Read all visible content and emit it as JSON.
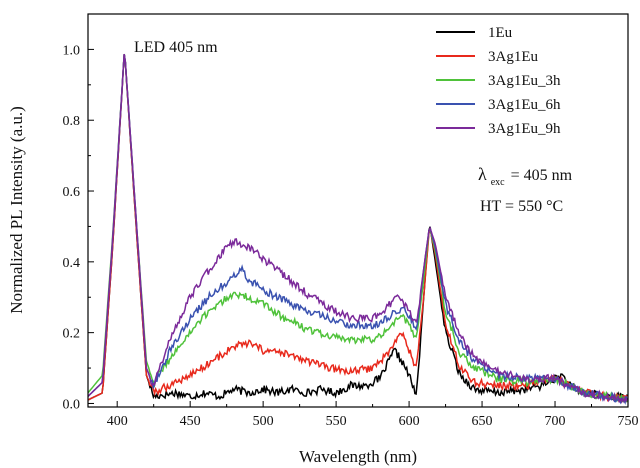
{
  "chart_data": {
    "type": "line",
    "xlabel": "Wavelength (nm)",
    "ylabel": "Normalized PL Intensity (a.u.)",
    "xlim": [
      380,
      750
    ],
    "ylim": [
      -0.01,
      1.1
    ],
    "xticks": [
      "400",
      "450",
      "500",
      "550",
      "600",
      "650",
      "700",
      "750"
    ],
    "yticks": [
      "0.0",
      "0.2",
      "0.4",
      "0.6",
      "0.8",
      "1.0"
    ],
    "legend_position": "top-right",
    "annotations": {
      "led": "LED 405 nm",
      "lambda": "λ",
      "exc": "exc",
      "exc_value": "= 405 nm",
      "ht": "HT = 550 °C"
    },
    "series": [
      {
        "name": "1Eu",
        "color": "#000000",
        "points": [
          [
            380,
            0.01
          ],
          [
            390,
            0.03
          ],
          [
            397,
            0.45
          ],
          [
            405,
            1.0
          ],
          [
            413,
            0.5
          ],
          [
            420,
            0.08
          ],
          [
            425,
            0.02
          ],
          [
            440,
            0.03
          ],
          [
            450,
            0.02
          ],
          [
            460,
            0.03
          ],
          [
            470,
            0.02
          ],
          [
            480,
            0.04
          ],
          [
            490,
            0.03
          ],
          [
            500,
            0.04
          ],
          [
            510,
            0.03
          ],
          [
            520,
            0.04
          ],
          [
            530,
            0.03
          ],
          [
            540,
            0.04
          ],
          [
            550,
            0.03
          ],
          [
            560,
            0.05
          ],
          [
            570,
            0.05
          ],
          [
            580,
            0.07
          ],
          [
            590,
            0.15
          ],
          [
            595,
            0.12
          ],
          [
            600,
            0.08
          ],
          [
            605,
            0.02
          ],
          [
            610,
            0.3
          ],
          [
            614,
            0.51
          ],
          [
            618,
            0.4
          ],
          [
            625,
            0.2
          ],
          [
            635,
            0.08
          ],
          [
            645,
            0.04
          ],
          [
            660,
            0.03
          ],
          [
            680,
            0.04
          ],
          [
            690,
            0.05
          ],
          [
            700,
            0.07
          ],
          [
            705,
            0.08
          ],
          [
            710,
            0.05
          ],
          [
            720,
            0.03
          ],
          [
            735,
            0.02
          ],
          [
            750,
            0.02
          ]
        ]
      },
      {
        "name": "3Ag1Eu",
        "color": "#e8291c",
        "points": [
          [
            380,
            0.01
          ],
          [
            390,
            0.03
          ],
          [
            397,
            0.45
          ],
          [
            405,
            1.0
          ],
          [
            413,
            0.5
          ],
          [
            420,
            0.08
          ],
          [
            425,
            0.03
          ],
          [
            435,
            0.05
          ],
          [
            450,
            0.08
          ],
          [
            465,
            0.12
          ],
          [
            480,
            0.16
          ],
          [
            490,
            0.17
          ],
          [
            500,
            0.15
          ],
          [
            515,
            0.14
          ],
          [
            530,
            0.12
          ],
          [
            545,
            0.1
          ],
          [
            560,
            0.09
          ],
          [
            575,
            0.1
          ],
          [
            585,
            0.14
          ],
          [
            595,
            0.2
          ],
          [
            600,
            0.15
          ],
          [
            605,
            0.1
          ],
          [
            610,
            0.3
          ],
          [
            614,
            0.5
          ],
          [
            618,
            0.42
          ],
          [
            625,
            0.22
          ],
          [
            635,
            0.1
          ],
          [
            645,
            0.06
          ],
          [
            660,
            0.05
          ],
          [
            680,
            0.05
          ],
          [
            690,
            0.06
          ],
          [
            700,
            0.07
          ],
          [
            710,
            0.05
          ],
          [
            720,
            0.03
          ],
          [
            735,
            0.02
          ],
          [
            750,
            0.01
          ]
        ]
      },
      {
        "name": "3Ag1Eu_3h",
        "color": "#4fc23a",
        "points": [
          [
            380,
            0.03
          ],
          [
            390,
            0.08
          ],
          [
            397,
            0.48
          ],
          [
            405,
            1.0
          ],
          [
            413,
            0.52
          ],
          [
            420,
            0.12
          ],
          [
            425,
            0.06
          ],
          [
            435,
            0.12
          ],
          [
            450,
            0.2
          ],
          [
            465,
            0.27
          ],
          [
            480,
            0.31
          ],
          [
            490,
            0.3
          ],
          [
            500,
            0.28
          ],
          [
            515,
            0.24
          ],
          [
            530,
            0.21
          ],
          [
            545,
            0.19
          ],
          [
            560,
            0.18
          ],
          [
            575,
            0.18
          ],
          [
            585,
            0.21
          ],
          [
            595,
            0.25
          ],
          [
            600,
            0.22
          ],
          [
            605,
            0.18
          ],
          [
            610,
            0.35
          ],
          [
            614,
            0.5
          ],
          [
            618,
            0.43
          ],
          [
            625,
            0.26
          ],
          [
            635,
            0.14
          ],
          [
            645,
            0.1
          ],
          [
            660,
            0.07
          ],
          [
            680,
            0.06
          ],
          [
            690,
            0.07
          ],
          [
            700,
            0.07
          ],
          [
            710,
            0.05
          ],
          [
            720,
            0.03
          ],
          [
            735,
            0.02
          ],
          [
            750,
            0.01
          ]
        ]
      },
      {
        "name": "3Ag1Eu_6h",
        "color": "#3a52b0",
        "points": [
          [
            380,
            0.02
          ],
          [
            390,
            0.06
          ],
          [
            397,
            0.47
          ],
          [
            405,
            1.0
          ],
          [
            413,
            0.52
          ],
          [
            420,
            0.1
          ],
          [
            425,
            0.05
          ],
          [
            435,
            0.14
          ],
          [
            450,
            0.24
          ],
          [
            465,
            0.31
          ],
          [
            480,
            0.36
          ],
          [
            485,
            0.38
          ],
          [
            490,
            0.35
          ],
          [
            500,
            0.32
          ],
          [
            515,
            0.29
          ],
          [
            530,
            0.26
          ],
          [
            545,
            0.24
          ],
          [
            560,
            0.22
          ],
          [
            575,
            0.22
          ],
          [
            585,
            0.24
          ],
          [
            595,
            0.27
          ],
          [
            600,
            0.25
          ],
          [
            605,
            0.2
          ],
          [
            610,
            0.38
          ],
          [
            614,
            0.5
          ],
          [
            618,
            0.44
          ],
          [
            625,
            0.28
          ],
          [
            635,
            0.17
          ],
          [
            645,
            0.12
          ],
          [
            660,
            0.08
          ],
          [
            680,
            0.07
          ],
          [
            690,
            0.07
          ],
          [
            700,
            0.07
          ],
          [
            710,
            0.05
          ],
          [
            720,
            0.03
          ],
          [
            735,
            0.02
          ],
          [
            750,
            0.01
          ]
        ]
      },
      {
        "name": "3Ag1Eu_9h",
        "color": "#7b2a9a",
        "points": [
          [
            380,
            0.02
          ],
          [
            390,
            0.06
          ],
          [
            397,
            0.47
          ],
          [
            405,
            1.0
          ],
          [
            413,
            0.52
          ],
          [
            420,
            0.1
          ],
          [
            425,
            0.05
          ],
          [
            435,
            0.17
          ],
          [
            450,
            0.3
          ],
          [
            465,
            0.39
          ],
          [
            475,
            0.44
          ],
          [
            480,
            0.46
          ],
          [
            490,
            0.44
          ],
          [
            500,
            0.41
          ],
          [
            515,
            0.36
          ],
          [
            530,
            0.31
          ],
          [
            545,
            0.27
          ],
          [
            560,
            0.24
          ],
          [
            575,
            0.24
          ],
          [
            585,
            0.27
          ],
          [
            590,
            0.3
          ],
          [
            595,
            0.29
          ],
          [
            600,
            0.26
          ],
          [
            605,
            0.22
          ],
          [
            610,
            0.38
          ],
          [
            614,
            0.5
          ],
          [
            618,
            0.45
          ],
          [
            625,
            0.3
          ],
          [
            635,
            0.19
          ],
          [
            645,
            0.13
          ],
          [
            660,
            0.09
          ],
          [
            680,
            0.07
          ],
          [
            690,
            0.07
          ],
          [
            700,
            0.07
          ],
          [
            710,
            0.05
          ],
          [
            720,
            0.03
          ],
          [
            735,
            0.02
          ],
          [
            750,
            0.01
          ]
        ]
      }
    ]
  }
}
